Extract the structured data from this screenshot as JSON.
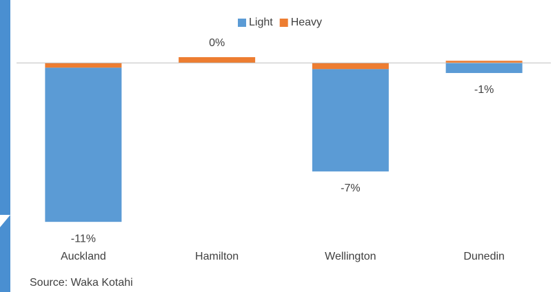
{
  "chart_data": {
    "type": "stacked_bar",
    "categories": [
      "Auckland",
      "Hamilton",
      "Wellington",
      "Dunedin"
    ],
    "series": [
      {
        "name": "Light",
        "color": "#5b9bd5",
        "values": [
          -10.7,
          0,
          -7.1,
          -0.7
        ],
        "value_labels": [
          "-11%",
          "0%",
          "-7%",
          "-1%"
        ]
      },
      {
        "name": "Heavy",
        "color": "#ed7d31",
        "values": [
          -0.33,
          0.4,
          -0.43,
          0.15
        ]
      }
    ],
    "ylim": [
      -11.5,
      1.5
    ],
    "legend": "top",
    "source": "Source: Waka Kotahi"
  }
}
